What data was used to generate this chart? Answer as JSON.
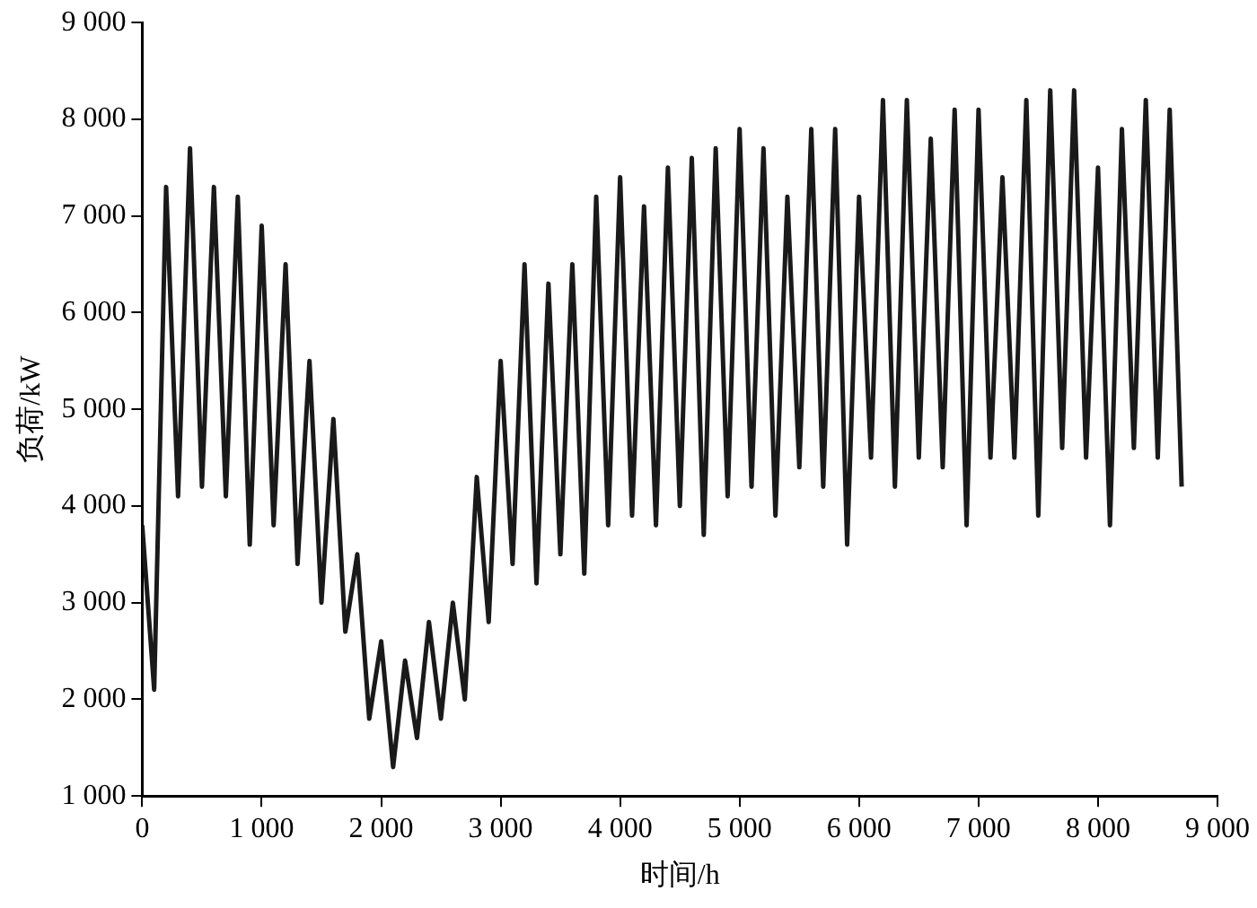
{
  "chart_data": {
    "type": "line",
    "xlabel": "时间/h",
    "ylabel": "负荷/kW",
    "x": [
      0,
      100,
      200,
      300,
      400,
      500,
      600,
      700,
      800,
      900,
      1000,
      1100,
      1200,
      1300,
      1400,
      1500,
      1600,
      1700,
      1800,
      1900,
      2000,
      2100,
      2200,
      2300,
      2400,
      2500,
      2600,
      2700,
      2800,
      2900,
      3000,
      3100,
      3200,
      3300,
      3400,
      3500,
      3600,
      3700,
      3800,
      3900,
      4000,
      4100,
      4200,
      4300,
      4400,
      4500,
      4600,
      4700,
      4800,
      4900,
      5000,
      5100,
      5200,
      5300,
      5400,
      5500,
      5600,
      5700,
      5800,
      5900,
      6000,
      6100,
      6200,
      6300,
      6400,
      6500,
      6600,
      6700,
      6800,
      6900,
      7000,
      7100,
      7200,
      7300,
      7400,
      7500,
      7600,
      7700,
      7800,
      7900,
      8000,
      8100,
      8200,
      8300,
      8400,
      8500,
      8600,
      8700
    ],
    "series": [
      {
        "color": "#1a1a1a",
        "values": [
          3800,
          2100,
          7300,
          4100,
          7700,
          4200,
          7300,
          4100,
          7200,
          3600,
          6900,
          3800,
          6500,
          3400,
          5500,
          3000,
          4900,
          2700,
          3500,
          1800,
          2600,
          1300,
          2400,
          1600,
          2800,
          1800,
          3000,
          2000,
          4300,
          2800,
          5500,
          3400,
          6500,
          3200,
          6300,
          3500,
          6500,
          3300,
          7200,
          3800,
          7400,
          3900,
          7100,
          3800,
          7500,
          4000,
          7600,
          3700,
          7700,
          4100,
          7900,
          4200,
          7700,
          3900,
          7200,
          4400,
          7900,
          4200,
          7900,
          3600,
          7200,
          4500,
          8200,
          4200,
          8200,
          4500,
          7800,
          4400,
          8100,
          3800,
          8100,
          4500,
          7400,
          4500,
          8200,
          3900,
          8300,
          4600,
          8300,
          4500,
          7500,
          3800,
          7900,
          4600,
          8200,
          4500,
          8100,
          4200
        ]
      }
    ],
    "xlim": [
      0,
      9000
    ],
    "xticks": [
      0,
      {
        "value": 1000,
        "label": "1 000"
      },
      {
        "value": 2000,
        "label": "2 000"
      },
      {
        "value": 3000,
        "label": "3 000"
      },
      {
        "value": 4000,
        "label": "4 000"
      },
      {
        "value": 5000,
        "label": "5 000"
      },
      {
        "value": 6000,
        "label": "6 000"
      },
      {
        "value": 7000,
        "label": "7 000"
      },
      {
        "value": 8000,
        "label": "8 000"
      },
      {
        "value": 9000,
        "label": "9 000"
      }
    ],
    "ylim": [
      1000,
      9000
    ],
    "yticks": [
      {
        "value": 1000,
        "label": "1 000"
      },
      {
        "value": 2000,
        "label": "2 000"
      },
      {
        "value": 3000,
        "label": "3 000"
      },
      {
        "value": 4000,
        "label": "4 000"
      },
      {
        "value": 5000,
        "label": "5 000"
      },
      {
        "value": 6000,
        "label": "6 000"
      },
      {
        "value": 7000,
        "label": "7 000"
      },
      {
        "value": 8000,
        "label": "8 000"
      },
      {
        "value": 9000,
        "label": "9 000"
      }
    ],
    "grid": false,
    "legend": false,
    "marker": "none",
    "line_style": "solid"
  }
}
